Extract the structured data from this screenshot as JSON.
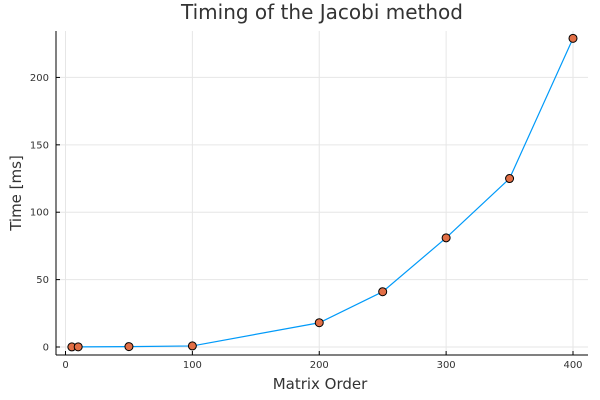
{
  "chart_data": {
    "type": "line",
    "title": "Timing of the Jacobi method",
    "xlabel": "Matrix Order",
    "ylabel": "Time [ms]",
    "xlim": [
      0,
      400
    ],
    "ylim": [
      0,
      230
    ],
    "xticks": [
      0,
      100,
      200,
      300,
      400
    ],
    "yticks": [
      0,
      50,
      100,
      150,
      200
    ],
    "grid": true,
    "legend": false,
    "line_color": "#009af9",
    "marker_color": "#e26f46",
    "marker_edge_color": "#000000",
    "series": [
      {
        "x": [
          5,
          10,
          50,
          100,
          200,
          250,
          300,
          350,
          400
        ],
        "y": [
          0.05,
          0.1,
          0.3,
          0.8,
          18,
          41,
          81,
          125,
          229
        ]
      }
    ]
  }
}
